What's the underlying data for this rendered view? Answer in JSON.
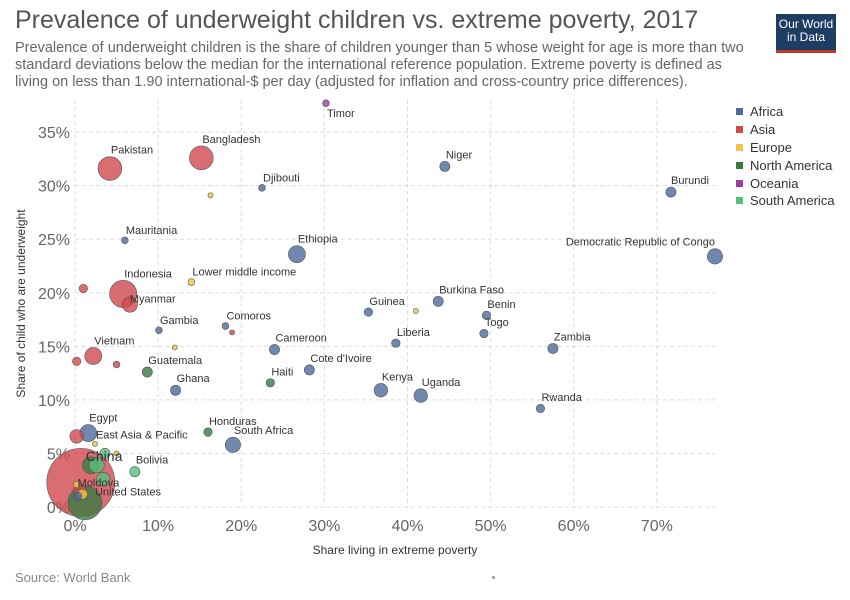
{
  "header": {
    "title": "Prevalence of underweight children vs. extreme poverty, 2017",
    "subtitle": "Prevalence of underweight children is the share of children younger than 5 whose weight for age is more than two standard deviations below the median for the international reference population. Extreme poverty is defined as living on less than 1.90 international-$ per day (adjusted for inflation and cross-country price differences).",
    "logo_line1": "Our World",
    "logo_line2": "in Data"
  },
  "footer": {
    "source": "Source: World Bank"
  },
  "chart_data": {
    "type": "scatter",
    "title": "Prevalence of underweight children vs. extreme poverty, 2017",
    "xlabel": "Share living in extreme poverty",
    "ylabel": "Share of child who are underweight",
    "xlim": [
      0,
      77
    ],
    "ylim": [
      0,
      38
    ],
    "x_ticks": [
      "0%",
      "10%",
      "20%",
      "30%",
      "40%",
      "50%",
      "60%",
      "70%"
    ],
    "y_ticks": [
      "0%",
      "5%",
      "10%",
      "15%",
      "20%",
      "25%",
      "30%",
      "35%"
    ],
    "grid": true,
    "legend_position": "right",
    "legend": [
      {
        "name": "Africa",
        "color": "#4c6a9c"
      },
      {
        "name": "Asia",
        "color": "#d0494f"
      },
      {
        "name": "Europe",
        "color": "#f5c342"
      },
      {
        "name": "North America",
        "color": "#3a7a40"
      },
      {
        "name": "Oceania",
        "color": "#9e3ca6"
      },
      {
        "name": "South America",
        "color": "#53c27a"
      }
    ],
    "points": [
      {
        "label": "Timor",
        "x": 30.2,
        "y": 37.7,
        "region": "Oceania",
        "size": 2
      },
      {
        "label": "Pakistan",
        "x": 4.2,
        "y": 31.6,
        "region": "Asia",
        "size": 7
      },
      {
        "label": "Bangladesh",
        "x": 15.2,
        "y": 32.6,
        "region": "Asia",
        "size": 7
      },
      {
        "label": "Niger",
        "x": 44.5,
        "y": 31.8,
        "region": "Africa",
        "size": 3
      },
      {
        "label": "Djibouti",
        "x": 22.5,
        "y": 29.8,
        "region": "Africa",
        "size": 2
      },
      {
        "label": "Burundi",
        "x": 71.7,
        "y": 29.4,
        "region": "Africa",
        "size": 3
      },
      {
        "label": "",
        "x": 16.3,
        "y": 29.1,
        "region": "Europe",
        "size": 1.5
      },
      {
        "label": "Mauritania",
        "x": 6.0,
        "y": 24.9,
        "region": "Africa",
        "size": 2
      },
      {
        "label": "Ethiopia",
        "x": 26.7,
        "y": 23.6,
        "region": "Africa",
        "size": 5
      },
      {
        "label": "Democratic Republic of Congo",
        "x": 77.0,
        "y": 23.4,
        "region": "Africa",
        "size": 4.5
      },
      {
        "label": "Lower middle income",
        "x": 14.0,
        "y": 21.0,
        "region": "Europe",
        "size": 2
      },
      {
        "label": "Indonesia",
        "x": 5.8,
        "y": 19.9,
        "region": "Asia",
        "size": 8
      },
      {
        "label": "Myanmar",
        "x": 6.6,
        "y": 18.9,
        "region": "Asia",
        "size": 4.5
      },
      {
        "label": "",
        "x": 1.0,
        "y": 20.4,
        "region": "Asia",
        "size": 2.5
      },
      {
        "label": "Burkina Faso",
        "x": 43.7,
        "y": 19.2,
        "region": "Africa",
        "size": 3
      },
      {
        "label": "",
        "x": 41.0,
        "y": 18.3,
        "region": "Europe",
        "size": 1.5
      },
      {
        "label": "Guinea",
        "x": 35.3,
        "y": 18.2,
        "region": "Africa",
        "size": 2.5
      },
      {
        "label": "Benin",
        "x": 49.5,
        "y": 17.9,
        "region": "Africa",
        "size": 2.5
      },
      {
        "label": "Gambia",
        "x": 10.1,
        "y": 16.5,
        "region": "Africa",
        "size": 2
      },
      {
        "label": "Comoros",
        "x": 18.1,
        "y": 16.9,
        "region": "Africa",
        "size": 2
      },
      {
        "label": "",
        "x": 18.9,
        "y": 16.3,
        "region": "Asia",
        "size": 1.5
      },
      {
        "label": "Togo",
        "x": 49.2,
        "y": 16.2,
        "region": "Africa",
        "size": 2.5
      },
      {
        "label": "Liberia",
        "x": 38.6,
        "y": 15.3,
        "region": "Africa",
        "size": 2.5
      },
      {
        "label": "Cameroon",
        "x": 24.0,
        "y": 14.7,
        "region": "Africa",
        "size": 3
      },
      {
        "label": "Zambia",
        "x": 57.5,
        "y": 14.8,
        "region": "Africa",
        "size": 3
      },
      {
        "label": "",
        "x": 12.0,
        "y": 14.9,
        "region": "Europe",
        "size": 1.5
      },
      {
        "label": "Vietnam",
        "x": 2.2,
        "y": 14.1,
        "region": "Asia",
        "size": 5
      },
      {
        "label": "",
        "x": 0.2,
        "y": 13.6,
        "region": "Asia",
        "size": 2.5
      },
      {
        "label": "",
        "x": 5.0,
        "y": 13.3,
        "region": "Asia",
        "size": 2
      },
      {
        "label": "Guatemala",
        "x": 8.7,
        "y": 12.6,
        "region": "North America",
        "size": 3
      },
      {
        "label": "Cote d'Ivoire",
        "x": 28.2,
        "y": 12.8,
        "region": "Africa",
        "size": 3
      },
      {
        "label": "Haiti",
        "x": 23.5,
        "y": 11.6,
        "region": "North America",
        "size": 2.5
      },
      {
        "label": "Ghana",
        "x": 12.1,
        "y": 10.9,
        "region": "Africa",
        "size": 3
      },
      {
        "label": "Kenya",
        "x": 36.8,
        "y": 10.9,
        "region": "Africa",
        "size": 4
      },
      {
        "label": "Uganda",
        "x": 41.6,
        "y": 10.4,
        "region": "Africa",
        "size": 4
      },
      {
        "label": "Rwanda",
        "x": 56.0,
        "y": 9.2,
        "region": "Africa",
        "size": 2.5
      },
      {
        "label": "Egypt",
        "x": 1.6,
        "y": 6.9,
        "region": "Africa",
        "size": 5
      },
      {
        "label": "",
        "x": 0.2,
        "y": 6.6,
        "region": "Asia",
        "size": 4
      },
      {
        "label": "Honduras",
        "x": 16.0,
        "y": 7.0,
        "region": "North America",
        "size": 2.5
      },
      {
        "label": "East Asia & Pacific",
        "x": 2.4,
        "y": 5.9,
        "region": "Europe",
        "size": 1.5
      },
      {
        "label": "South Africa",
        "x": 19.0,
        "y": 5.8,
        "region": "Africa",
        "size": 4.5
      },
      {
        "label": "",
        "x": 3.6,
        "y": 5.0,
        "region": "South America",
        "size": 3
      },
      {
        "label": "",
        "x": 5.0,
        "y": 5.0,
        "region": "Europe",
        "size": 1.5
      },
      {
        "label": "China",
        "x": 1.9,
        "y": 3.9,
        "region": "North America",
        "size": 5
      },
      {
        "label": "",
        "x": 2.6,
        "y": 3.9,
        "region": "South America",
        "size": 4.5
      },
      {
        "label": "Bolivia",
        "x": 7.2,
        "y": 3.3,
        "region": "South America",
        "size": 3
      },
      {
        "label": "",
        "x": 0.7,
        "y": 2.3,
        "region": "Asia",
        "size": 20
      },
      {
        "label": "",
        "x": 3.4,
        "y": 2.6,
        "region": "South America",
        "size": 4
      },
      {
        "label": "Moldova",
        "x": 0.2,
        "y": 2.1,
        "region": "Europe",
        "size": 2
      },
      {
        "label": "",
        "x": 0.6,
        "y": 1.5,
        "region": "Asia",
        "size": 4
      },
      {
        "label": "",
        "x": 0.9,
        "y": 1.2,
        "region": "Europe",
        "size": 3
      },
      {
        "label": "",
        "x": 0.3,
        "y": 1.0,
        "region": "Africa",
        "size": 2.5
      },
      {
        "label": "United States",
        "x": 1.2,
        "y": 0.4,
        "region": "North America",
        "size": 10
      }
    ]
  }
}
